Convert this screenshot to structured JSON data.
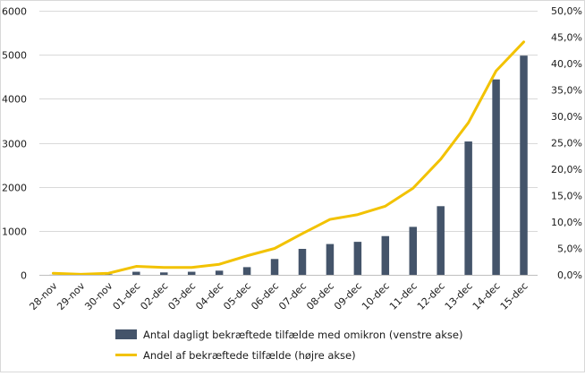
{
  "chart_data": {
    "type": "bar",
    "categories": [
      "28-nov",
      "29-nov",
      "30-nov",
      "01-dec",
      "02-dec",
      "03-dec",
      "04-dec",
      "05-dec",
      "06-dec",
      "07-dec",
      "08-dec",
      "09-dec",
      "10-dec",
      "11-dec",
      "12-dec",
      "13-dec",
      "14-dec",
      "15-dec"
    ],
    "series": [
      {
        "name": "Antal dagligt bekræftede tilfælde med omikron (venstre akse)",
        "type": "bar",
        "axis": "left",
        "color": "#44546a",
        "values": [
          2,
          5,
          12,
          70,
          55,
          70,
          95,
          175,
          360,
          590,
          700,
          750,
          880,
          1090,
          1560,
          3030,
          4440,
          4980
        ]
      },
      {
        "name": "Andel af bekræftede tilfælde (højre akse)",
        "type": "line",
        "axis": "right",
        "color": "#f2c200",
        "values": [
          0.3,
          0.1,
          0.3,
          1.6,
          1.4,
          1.4,
          2.0,
          3.6,
          5.0,
          7.8,
          10.5,
          11.4,
          13.0,
          16.4,
          21.9,
          28.8,
          38.6,
          44.1
        ]
      }
    ],
    "y_left": {
      "ylim": [
        0,
        6000
      ],
      "ticks": [
        "0",
        "1000",
        "2000",
        "3000",
        "4000",
        "5000",
        "6000"
      ]
    },
    "y_right": {
      "ylim": [
        0,
        50
      ],
      "ticks": [
        "0,0%",
        "5,0%",
        "10,0%",
        "15,0%",
        "20,0%",
        "25,0%",
        "30,0%",
        "35,0%",
        "40,0%",
        "45,0%",
        "50,0%"
      ]
    },
    "grid": true,
    "legend_position": "bottom",
    "title": "",
    "xlabel": "",
    "ylabel": ""
  }
}
